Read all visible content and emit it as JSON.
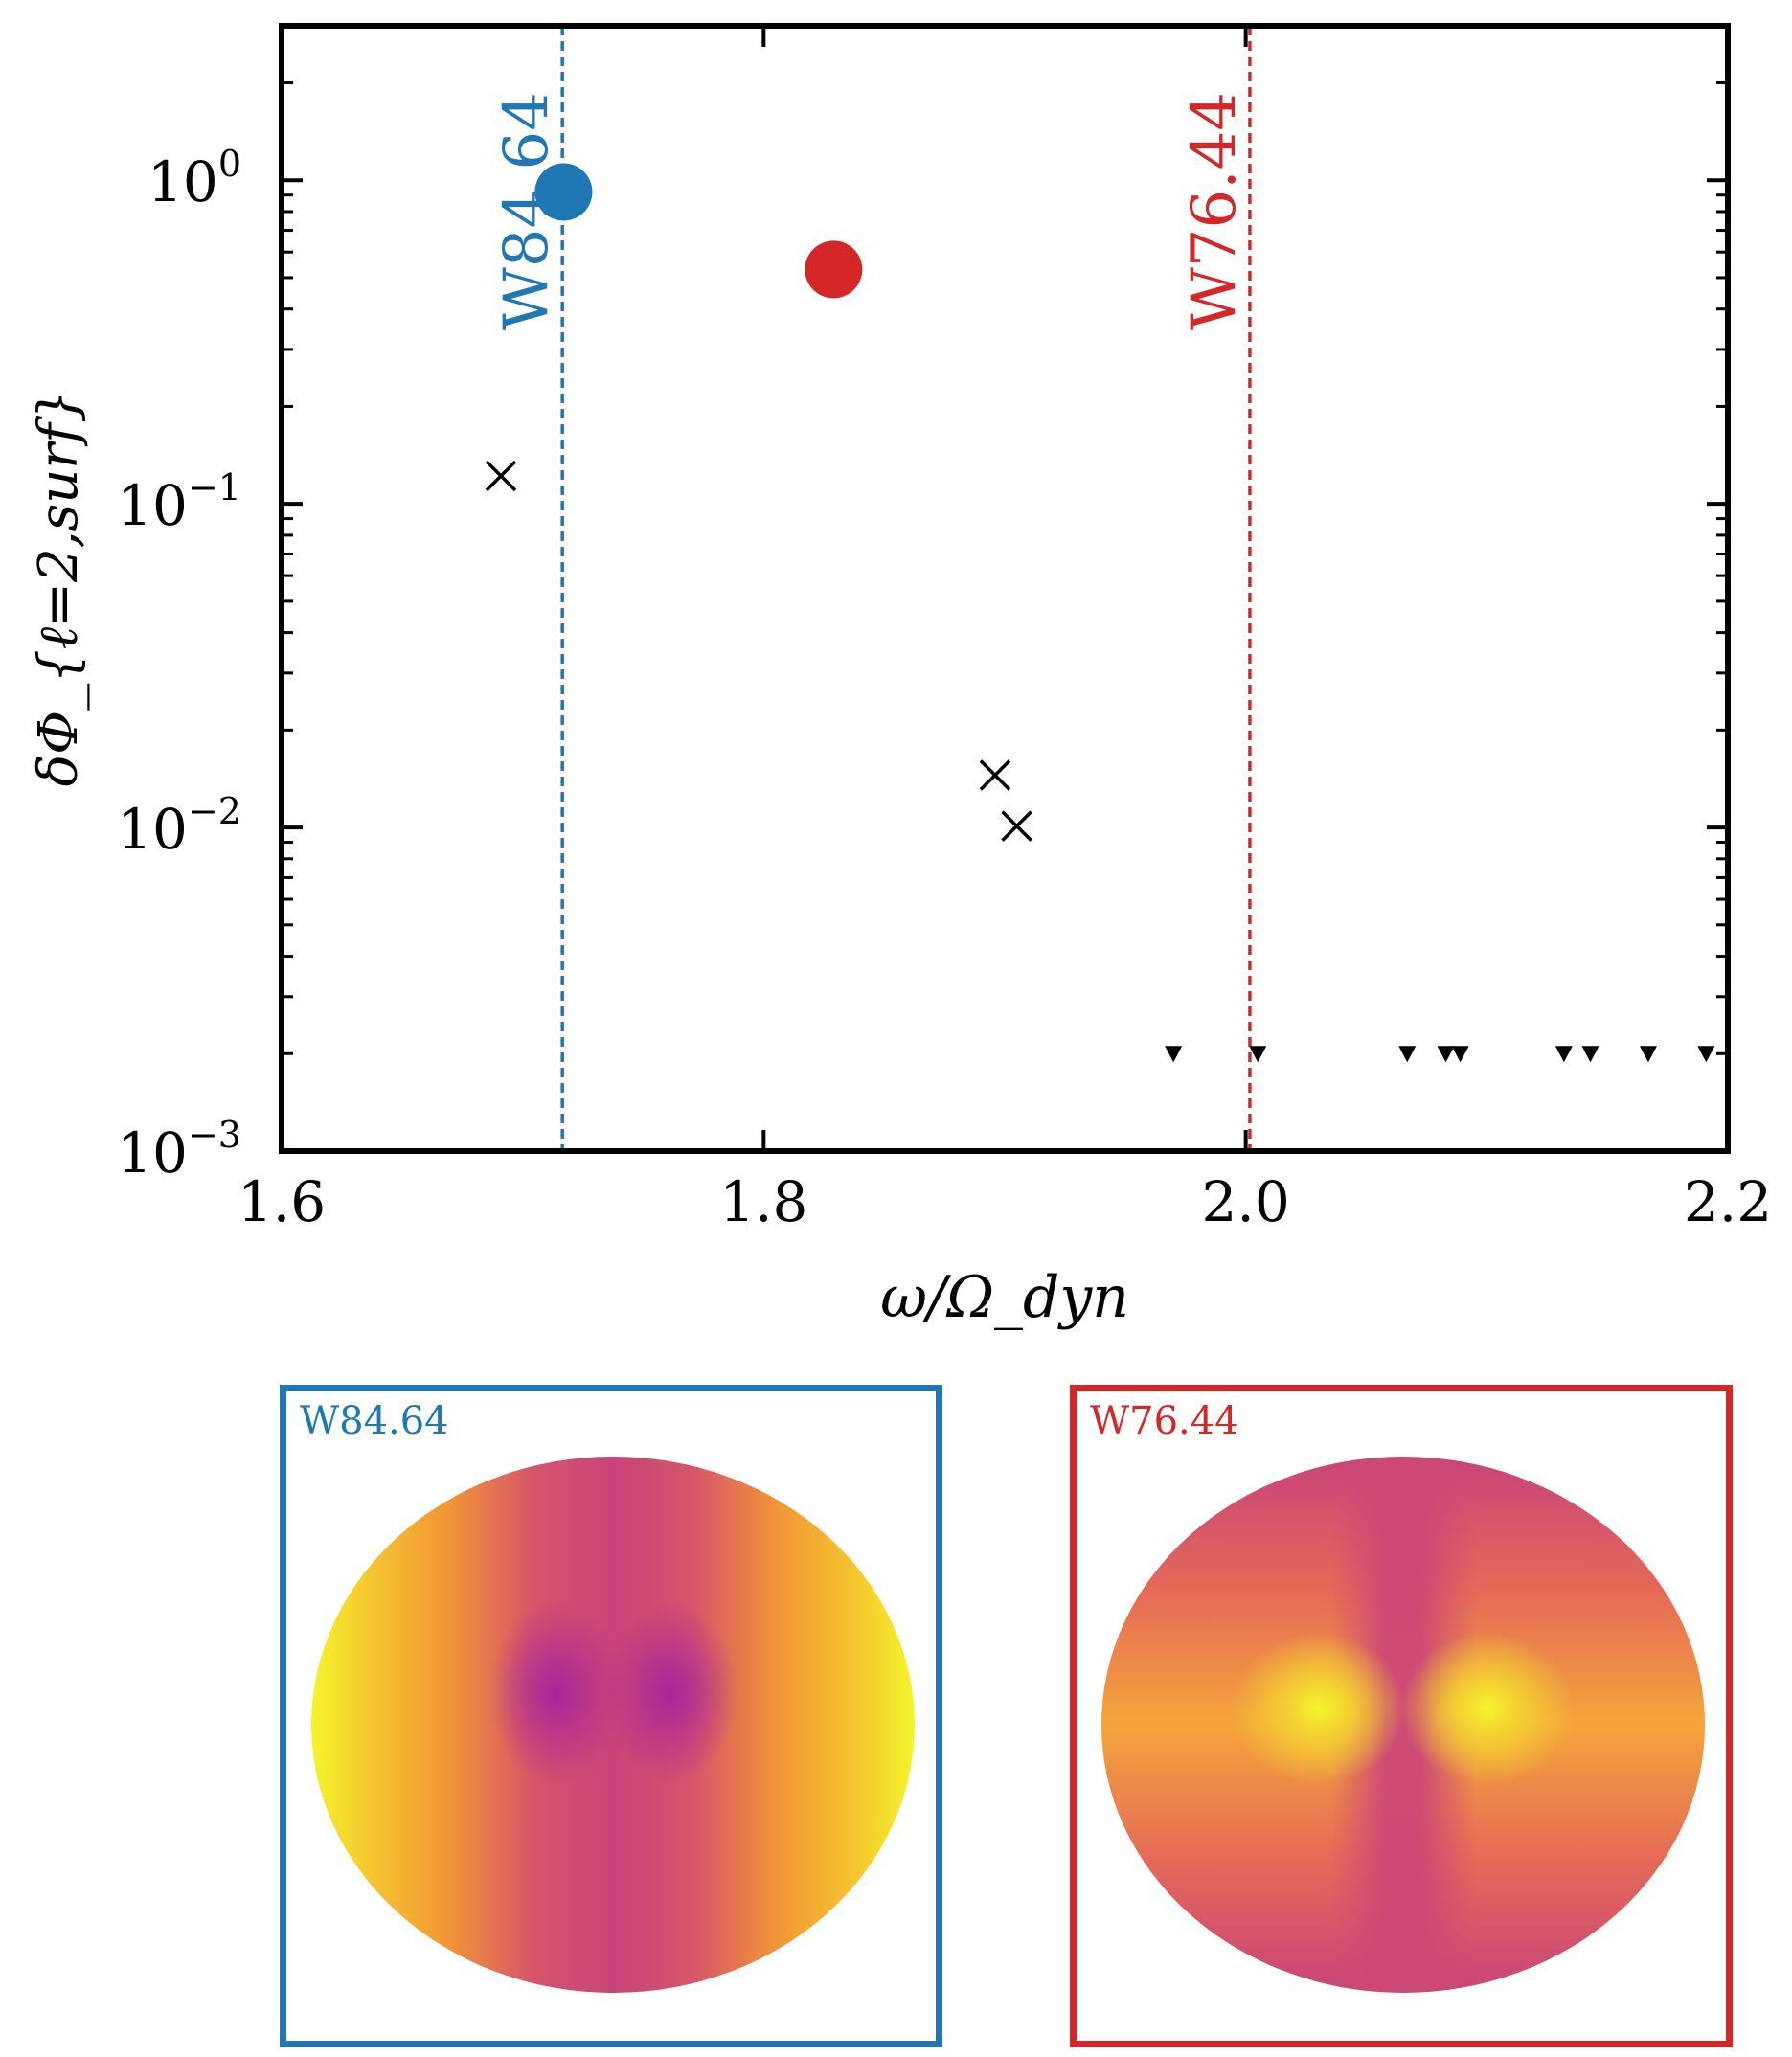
{
  "chart_data": {
    "type": "scatter",
    "xlabel": "ω/Ω_dyn",
    "ylabel": "δΦ_{ℓ=2,surf}",
    "xlim": [
      1.6,
      2.2
    ],
    "ylim": [
      0.001,
      3
    ],
    "yscale": "log",
    "x_ticks": [
      1.6,
      1.8,
      2.0,
      2.2
    ],
    "x_tick_labels": [
      "1.6",
      "1.8",
      "2.0",
      "2.2"
    ],
    "y_ticks": [
      0.001,
      0.01,
      0.1,
      1
    ],
    "y_tick_labels": [
      "10",
      "10",
      "10",
      "10"
    ],
    "y_tick_exponents": [
      "−3",
      "−2",
      "−1",
      "0"
    ],
    "grid": false,
    "highlighted_modes": [
      {
        "x": 1.717,
        "y": 0.92,
        "color": "#1f77b4"
      },
      {
        "x": 1.829,
        "y": 0.53,
        "color": "#d62728"
      }
    ],
    "cross_points": [
      {
        "x": 1.691,
        "y": 0.122
      },
      {
        "x": 1.896,
        "y": 0.0145
      },
      {
        "x": 1.905,
        "y": 0.0101
      }
    ],
    "upper_limit_points": [
      {
        "x": 1.97,
        "y": 0.002
      },
      {
        "x": 2.005,
        "y": 0.002
      },
      {
        "x": 2.067,
        "y": 0.002
      },
      {
        "x": 2.083,
        "y": 0.002
      },
      {
        "x": 2.089,
        "y": 0.002
      },
      {
        "x": 2.132,
        "y": 0.002
      },
      {
        "x": 2.143,
        "y": 0.002
      },
      {
        "x": 2.167,
        "y": 0.002
      },
      {
        "x": 2.191,
        "y": 0.002
      }
    ],
    "vertical_lines": [
      {
        "x": 1.7165,
        "label": "W84.64",
        "color": "#1f77b4"
      },
      {
        "x": 2.0017,
        "label": "W76.44",
        "color": "#d62728"
      }
    ]
  },
  "panels": [
    {
      "label": "W84.64",
      "color": "#1f77b4"
    },
    {
      "label": "W76.44",
      "color": "#d62728"
    }
  ]
}
